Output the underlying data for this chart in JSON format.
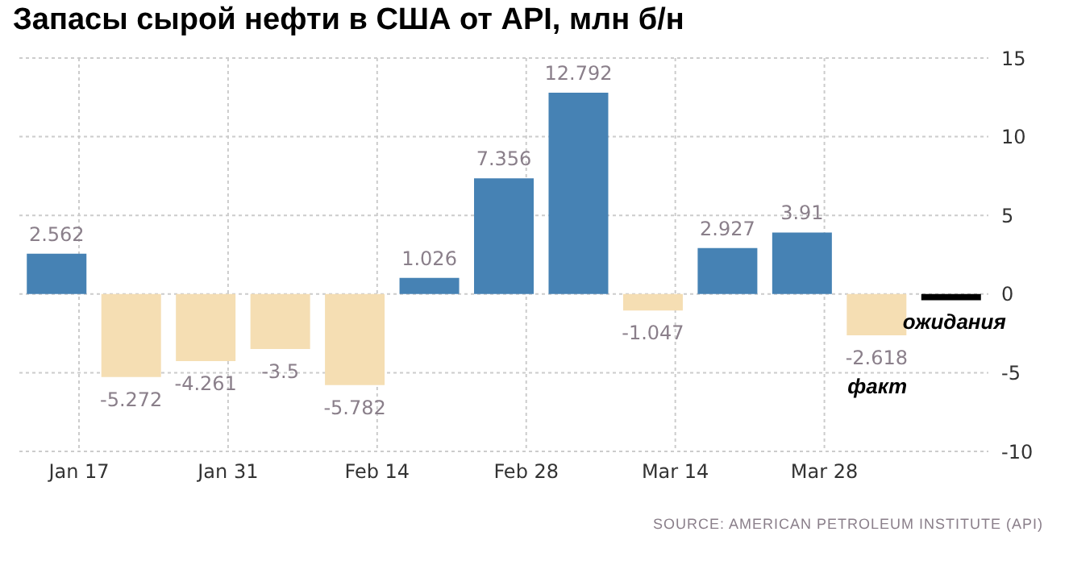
{
  "chart_data": {
    "type": "bar",
    "title": "Запасы сырой нефти в США от API, млн б/н",
    "categories": [
      "Jan 17",
      null,
      "Jan 31",
      null,
      "Feb 14",
      null,
      "Feb 28",
      null,
      "Mar 14",
      null,
      "Mar 28",
      null,
      null
    ],
    "values": [
      2.562,
      -5.272,
      -4.261,
      -3.5,
      -5.782,
      1.026,
      7.356,
      12.792,
      -1.047,
      2.927,
      3.91,
      -2.618,
      -0.4
    ],
    "colors": [
      "#4682b4",
      "#f5deb3",
      "#f5deb3",
      "#f5deb3",
      "#f5deb3",
      "#4682b4",
      "#4682b4",
      "#4682b4",
      "#f5deb3",
      "#4682b4",
      "#4682b4",
      "#f5deb3",
      "#000000"
    ],
    "value_labels": [
      "2.562",
      "-5.272",
      "-4.261",
      "-3.5",
      "-5.782",
      "1.026",
      "7.356",
      "12.792",
      "-1.047",
      "2.927",
      "3.91",
      "-2.618",
      null
    ],
    "ylim": [
      -10,
      15
    ],
    "yticks": [
      -10,
      -5,
      0,
      5,
      10,
      15
    ],
    "grid": true,
    "annotations": [
      "ожидания",
      "факт",
      "SOURCE: AMERICAN PETROLEUM INSTITUTE (API)"
    ]
  }
}
